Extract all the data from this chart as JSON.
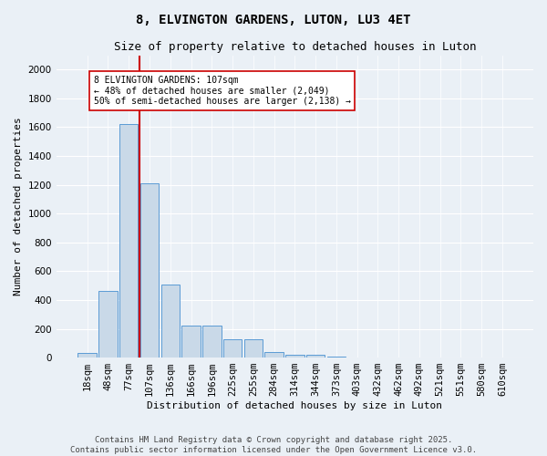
{
  "title_line1": "8, ELVINGTON GARDENS, LUTON, LU3 4ET",
  "title_line2": "Size of property relative to detached houses in Luton",
  "xlabel": "Distribution of detached houses by size in Luton",
  "ylabel": "Number of detached properties",
  "bar_labels": [
    "18sqm",
    "48sqm",
    "77sqm",
    "107sqm",
    "136sqm",
    "166sqm",
    "196sqm",
    "225sqm",
    "255sqm",
    "284sqm",
    "314sqm",
    "344sqm",
    "373sqm",
    "403sqm",
    "432sqm",
    "462sqm",
    "492sqm",
    "521sqm",
    "551sqm",
    "580sqm",
    "610sqm"
  ],
  "bar_values": [
    30,
    460,
    1620,
    1210,
    510,
    220,
    220,
    130,
    130,
    40,
    20,
    20,
    5,
    2,
    2,
    2,
    2,
    2,
    2,
    2,
    2
  ],
  "bar_color": "#c9d9e8",
  "bar_edge_color": "#5b9bd5",
  "annotation_text": "8 ELVINGTON GARDENS: 107sqm\n← 48% of detached houses are smaller (2,049)\n50% of semi-detached houses are larger (2,138) →",
  "vline_x": 3.0,
  "vline_color": "#cc0000",
  "annotation_box_color": "#ffffff",
  "annotation_box_edge": "#cc0000",
  "ylim": [
    0,
    2100
  ],
  "yticks": [
    0,
    200,
    400,
    600,
    800,
    1000,
    1200,
    1400,
    1600,
    1800,
    2000
  ],
  "footer_line1": "Contains HM Land Registry data © Crown copyright and database right 2025.",
  "footer_line2": "Contains public sector information licensed under the Open Government Licence v3.0.",
  "bg_color": "#eaf0f6",
  "grid_color": "#ffffff",
  "title_fontsize": 10,
  "subtitle_fontsize": 9,
  "axis_label_fontsize": 8,
  "tick_fontsize": 7.5,
  "annotation_fontsize": 7,
  "footer_fontsize": 6.5
}
